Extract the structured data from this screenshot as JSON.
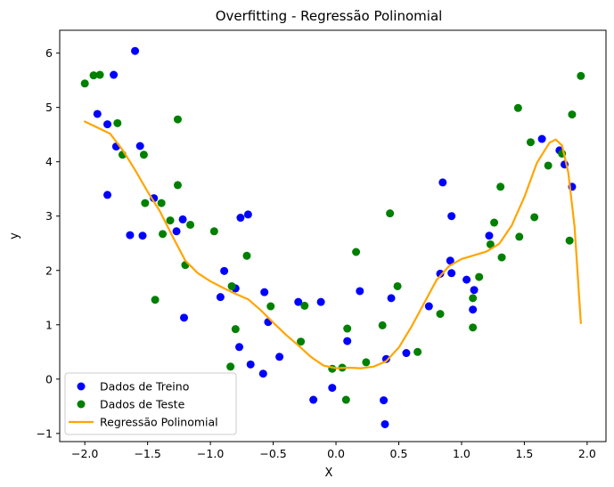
{
  "chart_data": {
    "type": "scatter",
    "title": "Overfitting - Regressão Polinomial",
    "xlabel": "X",
    "ylabel": "y",
    "xlim": [
      -2.2,
      2.15
    ],
    "ylim": [
      -1.15,
      6.42
    ],
    "xticks": [
      -2.0,
      -1.5,
      -1.0,
      -0.5,
      0.0,
      0.5,
      1.0,
      1.5,
      2.0
    ],
    "xtick_labels": [
      "−2.0",
      "−1.5",
      "−1.0",
      "−0.5",
      "0.0",
      "0.5",
      "1.0",
      "1.5",
      "2.0"
    ],
    "yticks": [
      -1,
      0,
      1,
      2,
      3,
      4,
      5,
      6
    ],
    "ytick_labels": [
      "−1",
      "0",
      "1",
      "2",
      "3",
      "4",
      "5",
      "6"
    ],
    "grid": false,
    "legend_position": "lower-left",
    "series": [
      {
        "name": "Dados de Treino",
        "kind": "scatter",
        "color": "#0000ff",
        "points": [
          [
            -1.9,
            4.88
          ],
          [
            -1.82,
            4.69
          ],
          [
            -1.82,
            3.39
          ],
          [
            -1.77,
            5.6
          ],
          [
            -1.75,
            4.28
          ],
          [
            -1.64,
            2.65
          ],
          [
            -1.6,
            6.04
          ],
          [
            -1.56,
            4.29
          ],
          [
            -1.54,
            2.64
          ],
          [
            -1.45,
            3.33
          ],
          [
            -1.27,
            2.72
          ],
          [
            -1.22,
            2.94
          ],
          [
            -1.21,
            1.13
          ],
          [
            -0.92,
            1.51
          ],
          [
            -0.89,
            1.99
          ],
          [
            -0.8,
            1.67
          ],
          [
            -0.77,
            0.59
          ],
          [
            -0.76,
            2.97
          ],
          [
            -0.7,
            3.03
          ],
          [
            -0.68,
            0.27
          ],
          [
            -0.58,
            0.1
          ],
          [
            -0.57,
            1.6
          ],
          [
            -0.54,
            1.05
          ],
          [
            -0.45,
            0.41
          ],
          [
            -0.3,
            1.42
          ],
          [
            -0.18,
            -0.38
          ],
          [
            -0.12,
            1.42
          ],
          [
            -0.03,
            -0.16
          ],
          [
            0.09,
            0.7
          ],
          [
            0.19,
            1.62
          ],
          [
            0.38,
            -0.39
          ],
          [
            0.39,
            -0.83
          ],
          [
            0.4,
            0.37
          ],
          [
            0.44,
            1.49
          ],
          [
            0.56,
            0.48
          ],
          [
            0.74,
            1.34
          ],
          [
            0.83,
            1.94
          ],
          [
            0.85,
            3.62
          ],
          [
            0.91,
            2.18
          ],
          [
            0.92,
            3.0
          ],
          [
            0.92,
            1.95
          ],
          [
            1.04,
            1.83
          ],
          [
            1.09,
            1.28
          ],
          [
            1.1,
            1.64
          ],
          [
            1.22,
            2.64
          ],
          [
            1.64,
            4.42
          ],
          [
            1.78,
            4.21
          ],
          [
            1.82,
            3.95
          ],
          [
            1.88,
            3.54
          ]
        ]
      },
      {
        "name": "Dados de Teste",
        "kind": "scatter",
        "color": "#008000",
        "points": [
          [
            -2.0,
            5.44
          ],
          [
            -1.93,
            5.59
          ],
          [
            -1.88,
            5.6
          ],
          [
            -1.74,
            4.71
          ],
          [
            -1.7,
            4.13
          ],
          [
            -1.53,
            4.13
          ],
          [
            -1.52,
            3.24
          ],
          [
            -1.44,
            1.46
          ],
          [
            -1.39,
            3.24
          ],
          [
            -1.38,
            2.67
          ],
          [
            -1.32,
            2.92
          ],
          [
            -1.26,
            3.57
          ],
          [
            -1.26,
            4.78
          ],
          [
            -1.2,
            2.1
          ],
          [
            -1.16,
            2.84
          ],
          [
            -0.97,
            2.72
          ],
          [
            -0.84,
            0.23
          ],
          [
            -0.83,
            1.71
          ],
          [
            -0.8,
            0.92
          ],
          [
            -0.71,
            2.27
          ],
          [
            -0.52,
            1.34
          ],
          [
            -0.28,
            0.69
          ],
          [
            -0.25,
            1.35
          ],
          [
            -0.03,
            0.19
          ],
          [
            0.05,
            0.21
          ],
          [
            0.08,
            -0.38
          ],
          [
            0.09,
            0.93
          ],
          [
            0.16,
            2.34
          ],
          [
            0.24,
            0.31
          ],
          [
            0.37,
            0.99
          ],
          [
            0.43,
            3.05
          ],
          [
            0.49,
            1.71
          ],
          [
            0.65,
            0.5
          ],
          [
            0.83,
            1.2
          ],
          [
            1.09,
            1.49
          ],
          [
            1.09,
            0.95
          ],
          [
            1.14,
            1.88
          ],
          [
            1.23,
            2.48
          ],
          [
            1.26,
            2.88
          ],
          [
            1.31,
            3.54
          ],
          [
            1.32,
            2.24
          ],
          [
            1.45,
            4.99
          ],
          [
            1.46,
            2.62
          ],
          [
            1.55,
            4.36
          ],
          [
            1.58,
            2.98
          ],
          [
            1.69,
            3.93
          ],
          [
            1.8,
            4.15
          ],
          [
            1.86,
            2.55
          ],
          [
            1.88,
            4.87
          ],
          [
            1.95,
            5.58
          ]
        ]
      },
      {
        "name": "Regressão Polinomial",
        "kind": "line",
        "color": "#ffa500",
        "points": [
          [
            -2.0,
            4.74
          ],
          [
            -1.9,
            4.63
          ],
          [
            -1.8,
            4.52
          ],
          [
            -1.7,
            4.22
          ],
          [
            -1.6,
            3.85
          ],
          [
            -1.5,
            3.45
          ],
          [
            -1.4,
            3.08
          ],
          [
            -1.3,
            2.62
          ],
          [
            -1.2,
            2.18
          ],
          [
            -1.1,
            1.95
          ],
          [
            -1.0,
            1.8
          ],
          [
            -0.9,
            1.68
          ],
          [
            -0.8,
            1.57
          ],
          [
            -0.7,
            1.47
          ],
          [
            -0.6,
            1.27
          ],
          [
            -0.5,
            1.04
          ],
          [
            -0.4,
            0.82
          ],
          [
            -0.3,
            0.62
          ],
          [
            -0.2,
            0.41
          ],
          [
            -0.1,
            0.25
          ],
          [
            0.0,
            0.2
          ],
          [
            0.1,
            0.21
          ],
          [
            0.2,
            0.2
          ],
          [
            0.3,
            0.23
          ],
          [
            0.4,
            0.33
          ],
          [
            0.5,
            0.58
          ],
          [
            0.6,
            0.96
          ],
          [
            0.7,
            1.39
          ],
          [
            0.8,
            1.82
          ],
          [
            0.9,
            2.08
          ],
          [
            1.0,
            2.21
          ],
          [
            1.1,
            2.28
          ],
          [
            1.2,
            2.35
          ],
          [
            1.3,
            2.49
          ],
          [
            1.4,
            2.83
          ],
          [
            1.5,
            3.35
          ],
          [
            1.6,
            3.98
          ],
          [
            1.7,
            4.35
          ],
          [
            1.75,
            4.41
          ],
          [
            1.8,
            4.3
          ],
          [
            1.85,
            3.8
          ],
          [
            1.9,
            2.8
          ],
          [
            1.95,
            1.03
          ]
        ]
      }
    ]
  }
}
